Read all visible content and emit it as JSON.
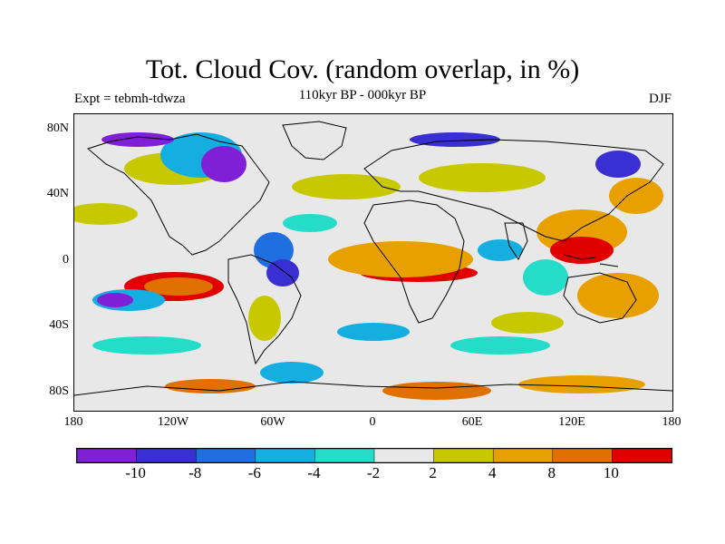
{
  "title": "Tot. Cloud Cov. (random overlap, in %)",
  "subtitle": "110kyr BP - 000kyr BP",
  "left_label": "Expt = tebmh-tdwza",
  "right_label": "DJF",
  "lat_labels": [
    "80N",
    "40N",
    "0",
    "40S",
    "80S"
  ],
  "lon_labels": [
    "180",
    "120W",
    "60W",
    "0",
    "60E",
    "120E",
    "180"
  ],
  "colorbar": {
    "colors": [
      "#7f1fd6",
      "#3a2fd2",
      "#1f6fe0",
      "#14aee0",
      "#25dcc8",
      "#e8e8e8",
      "#c8c800",
      "#e8a000",
      "#e07000",
      "#e00000"
    ],
    "labels": [
      "-10",
      "-8",
      "-6",
      "-4",
      "-2",
      "2",
      "4",
      "8",
      "10"
    ]
  }
}
